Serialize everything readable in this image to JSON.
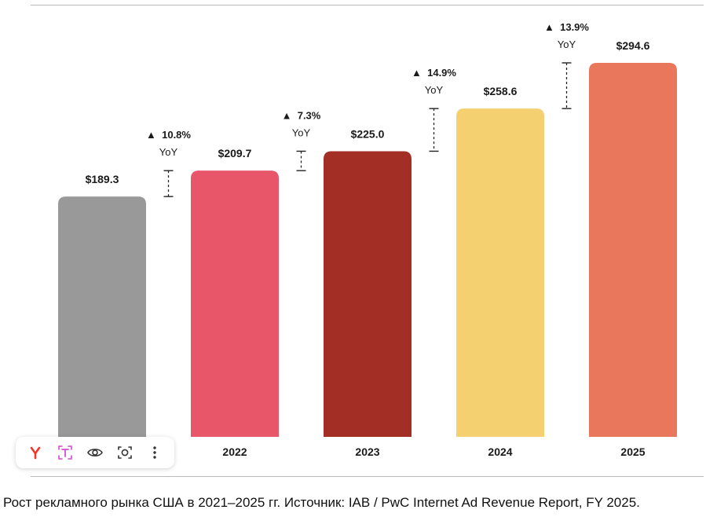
{
  "caption": "Рост рекламного рынка США в 2021–2025 гг. Источник: IAB / PwC Internet Ad Revenue Report, FY 2025.",
  "chart_data": {
    "type": "bar",
    "categories": [
      "",
      "2022",
      "2023",
      "2024",
      "2025"
    ],
    "values": [
      189.3,
      209.7,
      225.0,
      258.6,
      294.6
    ],
    "value_labels": [
      "$189.3",
      "$209.7",
      "$225.0",
      "$258.6",
      "$294.6"
    ],
    "colors": [
      "#999999",
      "#e8566a",
      "#a32e25",
      "#f5d070",
      "#e8775c"
    ],
    "yoy": [
      {
        "arrow": "▲",
        "pct": "10.8%",
        "sub": "YoY"
      },
      {
        "arrow": "▲",
        "pct": "7.3%",
        "sub": "YoY"
      },
      {
        "arrow": "▲",
        "pct": "14.9%",
        "sub": "YoY"
      },
      {
        "arrow": "▲",
        "pct": "13.9%",
        "sub": "YoY"
      }
    ],
    "title": "",
    "xlabel": "",
    "ylabel": "",
    "ylim": [
      0,
      300
    ],
    "grid": false,
    "legend": "none"
  },
  "toolbar": {
    "items": [
      {
        "name": "yandex-logo-icon"
      },
      {
        "name": "translate-text-icon"
      },
      {
        "name": "eye-icon"
      },
      {
        "name": "camera-lens-icon"
      },
      {
        "name": "more-vertical-icon"
      }
    ],
    "colors": {
      "yandex": "#f4362a",
      "translate": "#d54ad6",
      "icon": "#333333"
    }
  }
}
